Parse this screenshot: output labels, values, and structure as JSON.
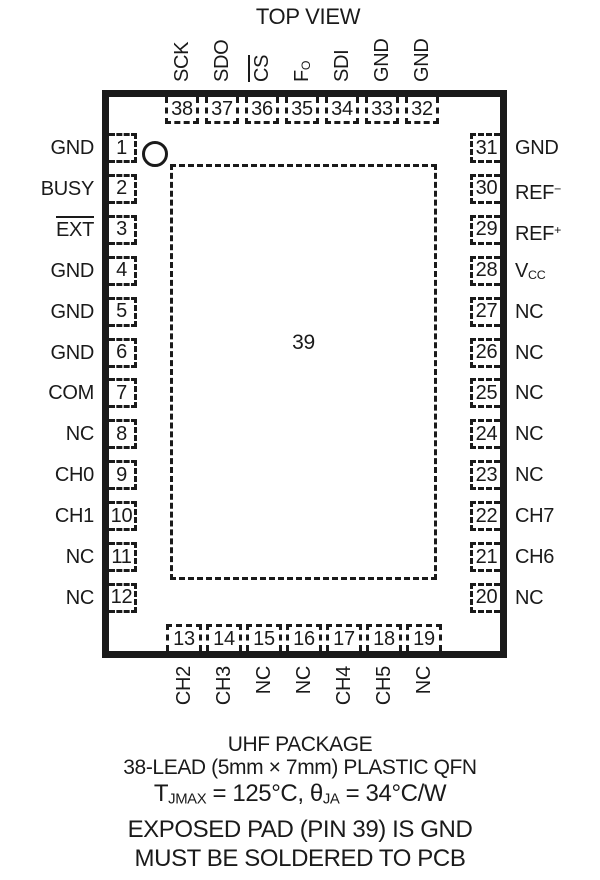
{
  "title": "TOP VIEW",
  "colors": {
    "ink": "#1a1a1a",
    "background": "#ffffff"
  },
  "package": {
    "exposed_pad_number": "39",
    "pins": {
      "top": [
        {
          "num": "38",
          "label": [
            {
              "t": "SCK"
            }
          ]
        },
        {
          "num": "37",
          "label": [
            {
              "t": "SDO"
            }
          ]
        },
        {
          "num": "36",
          "label": [
            {
              "t": "CS",
              "s": "over"
            }
          ]
        },
        {
          "num": "35",
          "label": [
            {
              "t": "F"
            },
            {
              "t": "O",
              "s": "sub"
            }
          ]
        },
        {
          "num": "34",
          "label": [
            {
              "t": "SDI"
            }
          ]
        },
        {
          "num": "33",
          "label": [
            {
              "t": "GND"
            }
          ]
        },
        {
          "num": "32",
          "label": [
            {
              "t": "GND"
            }
          ]
        }
      ],
      "left": [
        {
          "num": "1",
          "label": [
            {
              "t": "GND"
            }
          ]
        },
        {
          "num": "2",
          "label": [
            {
              "t": "BUSY"
            }
          ]
        },
        {
          "num": "3",
          "label": [
            {
              "t": "EXT",
              "s": "over"
            }
          ]
        },
        {
          "num": "4",
          "label": [
            {
              "t": "GND"
            }
          ]
        },
        {
          "num": "5",
          "label": [
            {
              "t": "GND"
            }
          ]
        },
        {
          "num": "6",
          "label": [
            {
              "t": "GND"
            }
          ]
        },
        {
          "num": "7",
          "label": [
            {
              "t": "COM"
            }
          ]
        },
        {
          "num": "8",
          "label": [
            {
              "t": "NC"
            }
          ]
        },
        {
          "num": "9",
          "label": [
            {
              "t": "CH0"
            }
          ]
        },
        {
          "num": "10",
          "label": [
            {
              "t": "CH1"
            }
          ]
        },
        {
          "num": "11",
          "label": [
            {
              "t": "NC"
            }
          ]
        },
        {
          "num": "12",
          "label": [
            {
              "t": "NC"
            }
          ]
        }
      ],
      "right": [
        {
          "num": "31",
          "label": [
            {
              "t": "GND"
            }
          ]
        },
        {
          "num": "30",
          "label": [
            {
              "t": "REF"
            },
            {
              "t": "−",
              "s": "sup"
            }
          ]
        },
        {
          "num": "29",
          "label": [
            {
              "t": "REF"
            },
            {
              "t": "+",
              "s": "sup"
            }
          ]
        },
        {
          "num": "28",
          "label": [
            {
              "t": "V"
            },
            {
              "t": "CC",
              "s": "sub"
            }
          ]
        },
        {
          "num": "27",
          "label": [
            {
              "t": "NC"
            }
          ]
        },
        {
          "num": "26",
          "label": [
            {
              "t": "NC"
            }
          ]
        },
        {
          "num": "25",
          "label": [
            {
              "t": "NC"
            }
          ]
        },
        {
          "num": "24",
          "label": [
            {
              "t": "NC"
            }
          ]
        },
        {
          "num": "23",
          "label": [
            {
              "t": "NC"
            }
          ]
        },
        {
          "num": "22",
          "label": [
            {
              "t": "CH7"
            }
          ]
        },
        {
          "num": "21",
          "label": [
            {
              "t": "CH6"
            }
          ]
        },
        {
          "num": "20",
          "label": [
            {
              "t": "NC"
            }
          ]
        }
      ],
      "bottom": [
        {
          "num": "13",
          "label": [
            {
              "t": "CH2"
            }
          ]
        },
        {
          "num": "14",
          "label": [
            {
              "t": "CH3"
            }
          ]
        },
        {
          "num": "15",
          "label": [
            {
              "t": "NC"
            }
          ]
        },
        {
          "num": "16",
          "label": [
            {
              "t": "NC"
            }
          ]
        },
        {
          "num": "17",
          "label": [
            {
              "t": "CH4"
            }
          ]
        },
        {
          "num": "18",
          "label": [
            {
              "t": "CH5"
            }
          ]
        },
        {
          "num": "19",
          "label": [
            {
              "t": "NC"
            }
          ]
        }
      ]
    }
  },
  "caption": {
    "lines": [
      {
        "size": "small",
        "parts": [
          {
            "t": "UHF PACKAGE"
          }
        ]
      },
      {
        "size": "small",
        "parts": [
          {
            "t": "38-LEAD (5mm × 7mm) PLASTIC QFN"
          }
        ]
      },
      {
        "size": "large",
        "parts": [
          {
            "t": "T"
          },
          {
            "t": "JMAX",
            "s": "sub"
          },
          {
            "t": " = 125°C, θ"
          },
          {
            "t": "JA",
            "s": "sub"
          },
          {
            "t": " = 34°C/W"
          }
        ]
      },
      {
        "size": "large",
        "parts": [
          {
            "t": "EXPOSED PAD (PIN 39) IS GND"
          }
        ]
      },
      {
        "size": "large",
        "parts": [
          {
            "t": "MUST BE SOLDERED TO PCB"
          }
        ]
      }
    ]
  }
}
